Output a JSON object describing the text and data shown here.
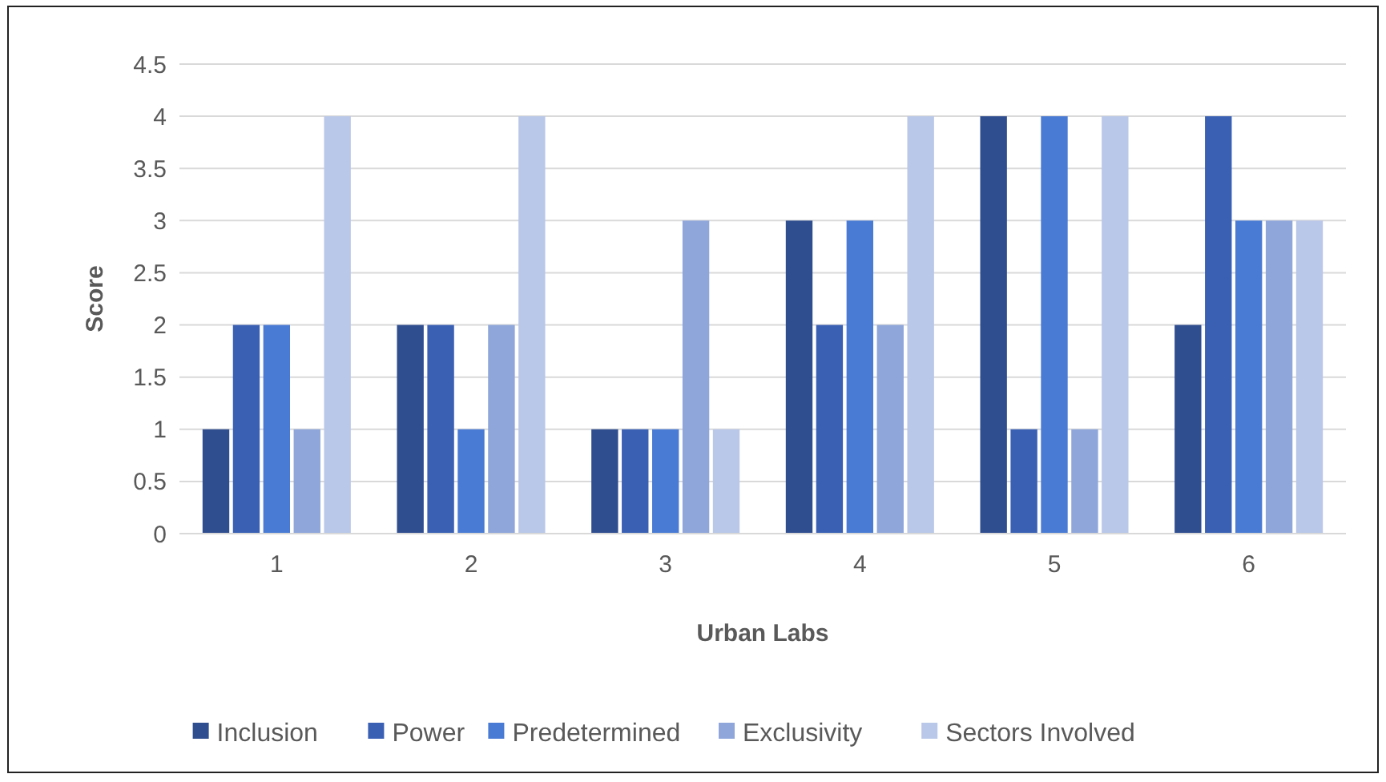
{
  "chart_data": {
    "type": "bar",
    "xlabel": "Urban Labs",
    "ylabel": "Score",
    "categories": [
      "1",
      "2",
      "3",
      "4",
      "5",
      "6"
    ],
    "series": [
      {
        "name": "Inclusion",
        "color": "#2f4e8f",
        "values": [
          1,
          2,
          1,
          3,
          4,
          2
        ]
      },
      {
        "name": "Power",
        "color": "#3a60b4",
        "values": [
          2,
          2,
          1,
          2,
          1,
          4
        ]
      },
      {
        "name": "Predetermined",
        "color": "#4a7bd4",
        "values": [
          2,
          1,
          1,
          3,
          4,
          3
        ]
      },
      {
        "name": "Exclusivity",
        "color": "#8ea6da",
        "values": [
          1,
          2,
          3,
          2,
          1,
          3
        ]
      },
      {
        "name": "Sectors Involved",
        "color": "#b9c7e8",
        "values": [
          4,
          4,
          1,
          4,
          4,
          3
        ]
      }
    ],
    "ylim": [
      0,
      4.5
    ],
    "yticks": [
      0,
      0.5,
      1,
      1.5,
      2,
      2.5,
      3,
      3.5,
      4,
      4.5
    ],
    "grid": "y",
    "legend": "bottom"
  }
}
